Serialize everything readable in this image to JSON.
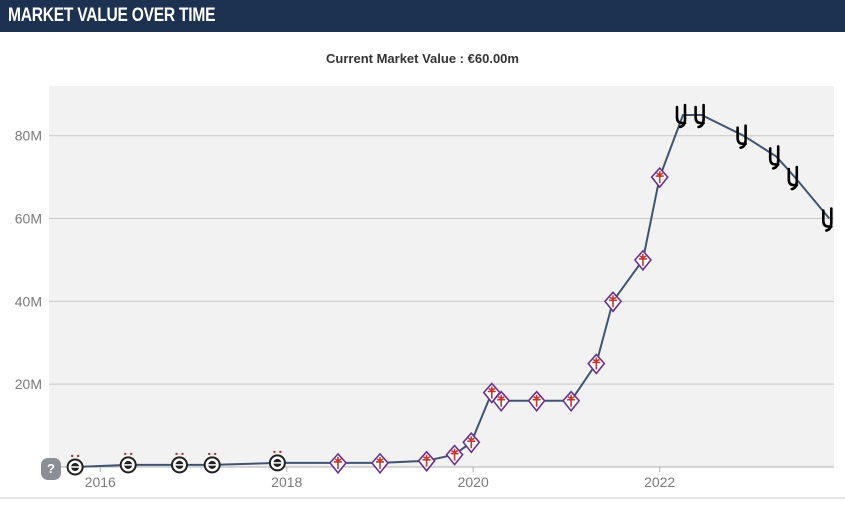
{
  "header": {
    "title": "MARKET VALUE OVER TIME"
  },
  "subtitle": {
    "label": "Current Market Value :",
    "value": "€60.00m"
  },
  "help_icon": {
    "symbol": "?"
  },
  "colors": {
    "header_bg": "#1d3150",
    "plot_bg": "#f2f2f2",
    "line": "#3e5470",
    "gridline": "#c8c8c8",
    "axis_text": "#7a7a7a",
    "fiorentina_purple": "#6b2f8f",
    "fiorentina_red": "#c0392b",
    "partizan_black": "#222222",
    "juventus_black": "#000000"
  },
  "chart_data": {
    "type": "line",
    "title": "",
    "xlabel": "",
    "ylabel": "",
    "xlim": [
      2015.45,
      2023.87
    ],
    "ylim": [
      0,
      92
    ],
    "x_ticks": [
      "2016",
      "2018",
      "2020",
      "2022"
    ],
    "y_ticks": [
      "20M",
      "40M",
      "60M",
      "80M"
    ],
    "grid": "horizontal",
    "series": [
      {
        "values": [
          {
            "x": 2015.73,
            "y": 0.0,
            "club": "partizan"
          },
          {
            "x": 2016.3,
            "y": 0.5,
            "club": "partizan"
          },
          {
            "x": 2016.85,
            "y": 0.5,
            "club": "partizan"
          },
          {
            "x": 2017.2,
            "y": 0.5,
            "club": "partizan"
          },
          {
            "x": 2017.9,
            "y": 1.0,
            "club": "partizan"
          },
          {
            "x": 2018.55,
            "y": 1.0,
            "club": "fiorentina"
          },
          {
            "x": 2019.0,
            "y": 1.0,
            "club": "fiorentina"
          },
          {
            "x": 2019.5,
            "y": 1.5,
            "club": "fiorentina"
          },
          {
            "x": 2019.8,
            "y": 3.0,
            "club": "fiorentina"
          },
          {
            "x": 2019.98,
            "y": 6.0,
            "club": "fiorentina"
          },
          {
            "x": 2020.2,
            "y": 18.0,
            "club": "fiorentina"
          },
          {
            "x": 2020.3,
            "y": 16.0,
            "club": "fiorentina"
          },
          {
            "x": 2020.68,
            "y": 16.0,
            "club": "fiorentina"
          },
          {
            "x": 2021.05,
            "y": 16.0,
            "club": "fiorentina"
          },
          {
            "x": 2021.32,
            "y": 25.0,
            "club": "fiorentina"
          },
          {
            "x": 2021.5,
            "y": 40.0,
            "club": "fiorentina"
          },
          {
            "x": 2021.82,
            "y": 50.0,
            "club": "fiorentina"
          },
          {
            "x": 2022.0,
            "y": 70.0,
            "club": "fiorentina"
          },
          {
            "x": 2022.25,
            "y": 85.0,
            "club": "juventus"
          },
          {
            "x": 2022.45,
            "y": 85.0,
            "club": "juventus"
          },
          {
            "x": 2022.9,
            "y": 80.0,
            "club": "juventus"
          },
          {
            "x": 2023.25,
            "y": 75.0,
            "club": "juventus"
          },
          {
            "x": 2023.45,
            "y": 70.0,
            "club": "juventus"
          },
          {
            "x": 2023.82,
            "y": 60.0,
            "club": "juventus"
          }
        ]
      }
    ]
  }
}
